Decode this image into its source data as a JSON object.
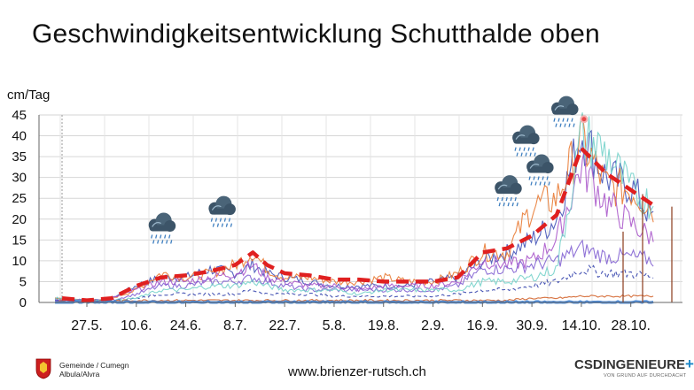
{
  "header": {
    "title": "Geschwindigkeitsentwicklung Schutthalde oben"
  },
  "footer": {
    "url": "www.brienzer-rutsch.ch",
    "municipality_line1": "Gemeinde / Cumegn",
    "municipality_line2": "Albula/Alvra",
    "brand": "CSDINGENIEURE",
    "brand_plus": "+",
    "brand_tagline": "VON GRUND AUF DURCHDACHT"
  },
  "chart_data": {
    "type": "line",
    "title": "Geschwindigkeitsentwicklung Schutthalde oben",
    "ylabel": "cm/Tag",
    "ylim": [
      0,
      45
    ],
    "yticks": [
      0,
      5,
      10,
      15,
      20,
      25,
      30,
      35,
      40,
      45
    ],
    "xticks": [
      "27.5.",
      "10.6.",
      "24.6.",
      "8.7.",
      "22.7.",
      "5.8.",
      "19.8.",
      "2.9.",
      "16.9.",
      "30.9.",
      "14.10.",
      "28.10."
    ],
    "grid": true,
    "trend": {
      "style": "dashed",
      "color": "#e02020",
      "points": [
        {
          "x": "20.5.",
          "y": 1
        },
        {
          "x": "27.5.",
          "y": 0.5
        },
        {
          "x": "3.6.",
          "y": 1
        },
        {
          "x": "10.6.",
          "y": 4
        },
        {
          "x": "17.6.",
          "y": 6
        },
        {
          "x": "24.6.",
          "y": 6.5
        },
        {
          "x": "1.7.",
          "y": 7.5
        },
        {
          "x": "8.7.",
          "y": 9
        },
        {
          "x": "13.7.",
          "y": 12
        },
        {
          "x": "17.7.",
          "y": 9
        },
        {
          "x": "22.7.",
          "y": 7
        },
        {
          "x": "29.7.",
          "y": 6.5
        },
        {
          "x": "5.8.",
          "y": 5.5
        },
        {
          "x": "12.8.",
          "y": 5.5
        },
        {
          "x": "19.8.",
          "y": 5
        },
        {
          "x": "26.8.",
          "y": 5
        },
        {
          "x": "2.9.",
          "y": 5
        },
        {
          "x": "9.9.",
          "y": 6
        },
        {
          "x": "16.9.",
          "y": 12
        },
        {
          "x": "23.9.",
          "y": 13
        },
        {
          "x": "30.9.",
          "y": 16
        },
        {
          "x": "7.10.",
          "y": 21
        },
        {
          "x": "14.10.",
          "y": 37
        },
        {
          "x": "21.10.",
          "y": 31
        },
        {
          "x": "28.10.",
          "y": 27
        },
        {
          "x": "4.11.",
          "y": 23
        }
      ]
    },
    "series": [
      {
        "color": "#3b4bb5",
        "values": [
          1,
          0.5,
          1,
          4,
          6,
          6,
          8,
          7,
          9,
          7,
          6,
          5,
          4,
          4,
          4,
          4,
          5,
          6,
          10,
          12,
          15,
          20,
          41,
          30,
          28,
          19
        ]
      },
      {
        "color": "#e8742a",
        "values": [
          1,
          0.5,
          1,
          3,
          7,
          6,
          7,
          9,
          12,
          8,
          6,
          6,
          5,
          5,
          6,
          5,
          5,
          7,
          12,
          12,
          23,
          25,
          39,
          28,
          27,
          22
        ]
      },
      {
        "color": "#a64fc8",
        "values": [
          0.5,
          0.5,
          1,
          3,
          5,
          5,
          6,
          7,
          9,
          6,
          5,
          4,
          4,
          3,
          4,
          4,
          4,
          5,
          10,
          9,
          10,
          15,
          33,
          24,
          19,
          15
        ]
      },
      {
        "color": "#7d5ad0",
        "values": [
          0.5,
          0.5,
          0.5,
          2,
          4,
          4,
          5,
          5,
          6,
          5,
          4,
          3,
          3,
          3,
          3,
          3,
          3,
          4,
          8,
          8,
          9,
          10,
          13,
          11,
          11,
          10
        ]
      },
      {
        "color": "#2a3aa8",
        "values": [
          0.5,
          0.5,
          0.5,
          1,
          2,
          2,
          2,
          2,
          3,
          2,
          2,
          2,
          1.5,
          1.5,
          1.5,
          1.5,
          1.5,
          2,
          3,
          3,
          4,
          5,
          8,
          7,
          7,
          6
        ]
      },
      {
        "color": "#6fd0c8",
        "values": [
          1,
          0.5,
          0.5,
          1,
          3,
          3,
          4,
          4,
          5,
          4,
          3,
          3,
          3,
          2,
          3,
          3,
          3,
          3,
          5,
          5,
          6,
          8,
          40,
          36,
          27,
          23
        ]
      },
      {
        "color": "#d05a20",
        "values": [
          0.3,
          0.3,
          0.3,
          0.5,
          0.5,
          0.5,
          0.5,
          0.5,
          0.5,
          0.5,
          0.5,
          0.5,
          0.5,
          0.5,
          0.5,
          0.5,
          0.5,
          0.5,
          0.5,
          0.5,
          1,
          1,
          1.5,
          1.5,
          1.5,
          1.5
        ]
      },
      {
        "color": "#3a7fd6",
        "values": [
          0,
          0,
          0,
          0,
          0,
          0,
          0,
          0,
          0,
          0,
          0,
          0,
          0,
          0,
          0,
          0,
          0,
          0,
          0,
          0,
          0,
          0,
          0,
          0,
          0,
          0
        ]
      }
    ],
    "annotations": {
      "rain_icons": [
        {
          "x": "17.6.",
          "y": 19
        },
        {
          "x": "4.7.",
          "y": 23
        },
        {
          "x": "23.9.",
          "y": 28
        },
        {
          "x": "28.9.",
          "y": 40
        },
        {
          "x": "2.10.",
          "y": 33
        },
        {
          "x": "9.10.",
          "y": 47
        }
      ]
    }
  }
}
